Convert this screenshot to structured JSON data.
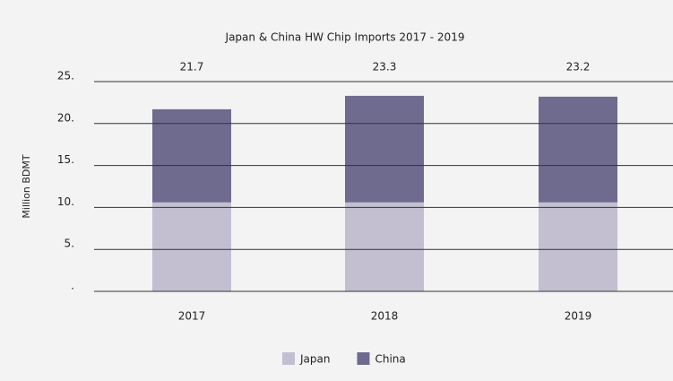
{
  "chart_data": {
    "type": "stacked-bar",
    "title": "Japan & China HW Chip Imports 2017 - 2019",
    "y_axis_label": "Million BDMT",
    "categories": [
      "2017",
      "2018",
      "2019"
    ],
    "series": [
      {
        "name": "Japan",
        "color": "#c3bfd1",
        "values": [
          10.6,
          10.6,
          10.6
        ]
      },
      {
        "name": "China",
        "color": "#6e6b8f",
        "values": [
          11.1,
          12.7,
          12.6
        ]
      }
    ],
    "totals": [
      21.7,
      23.3,
      23.2
    ],
    "ylim": [
      0,
      25
    ],
    "yticks": [
      {
        "value": 0,
        "label": "."
      },
      {
        "value": 5,
        "label": "5."
      },
      {
        "value": 10,
        "label": "10."
      },
      {
        "value": 15,
        "label": "15."
      },
      {
        "value": 20,
        "label": "20."
      },
      {
        "value": 25,
        "label": "25."
      }
    ],
    "grid": true,
    "legend": "bottom"
  }
}
